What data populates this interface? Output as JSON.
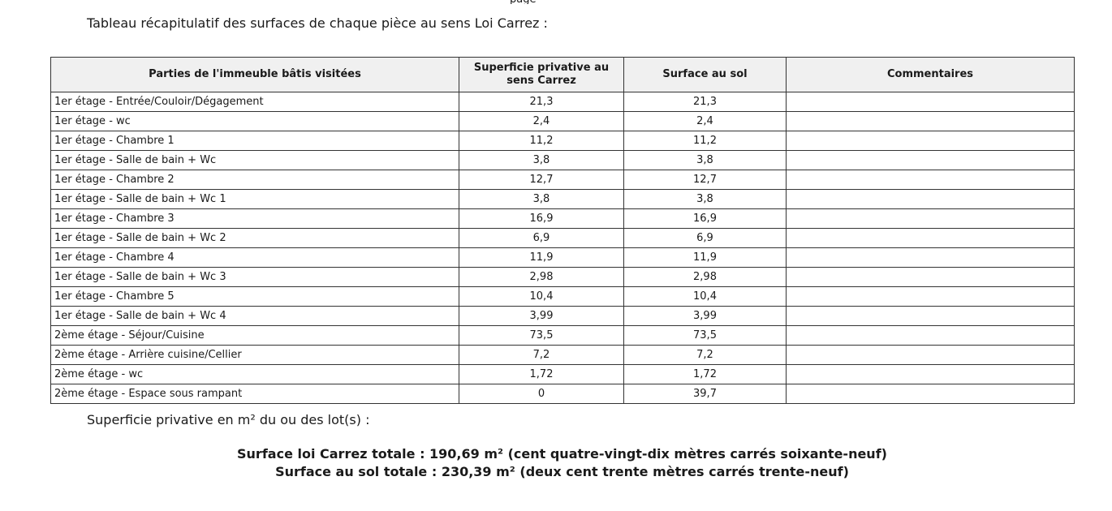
{
  "page": {
    "top_fragment": "page",
    "title": "Tableau récapitulatif des surfaces de chaque pièce au sens Loi Carrez :",
    "subtitle": "Superficie privative en m² du ou des lot(s) :",
    "totals": {
      "carrez": "Surface loi Carrez totale : 190,69 m² (cent quatre-vingt-dix mètres carrés soixante-neuf)",
      "sol": "Surface au sol totale : 230,39 m² (deux cent trente mètres carrés trente-neuf)"
    }
  },
  "table": {
    "headers": [
      "Parties de l'immeuble bâtis visitées",
      "Superficie privative au sens Carrez",
      "Surface au sol",
      "Commentaires"
    ],
    "rows": [
      {
        "partie": "1er étage - Entrée/Couloir/Dégagement",
        "carrez": "21,3",
        "sol": "21,3",
        "commentaire": ""
      },
      {
        "partie": "1er étage - wc",
        "carrez": "2,4",
        "sol": "2,4",
        "commentaire": ""
      },
      {
        "partie": "1er étage - Chambre 1",
        "carrez": "11,2",
        "sol": "11,2",
        "commentaire": ""
      },
      {
        "partie": "1er étage - Salle de bain + Wc",
        "carrez": "3,8",
        "sol": "3,8",
        "commentaire": ""
      },
      {
        "partie": "1er étage - Chambre 2",
        "carrez": "12,7",
        "sol": "12,7",
        "commentaire": ""
      },
      {
        "partie": "1er étage - Salle de bain + Wc 1",
        "carrez": "3,8",
        "sol": "3,8",
        "commentaire": ""
      },
      {
        "partie": "1er étage - Chambre 3",
        "carrez": "16,9",
        "sol": "16,9",
        "commentaire": ""
      },
      {
        "partie": "1er étage - Salle de bain + Wc 2",
        "carrez": "6,9",
        "sol": "6,9",
        "commentaire": ""
      },
      {
        "partie": "1er étage - Chambre 4",
        "carrez": "11,9",
        "sol": "11,9",
        "commentaire": ""
      },
      {
        "partie": "1er étage - Salle de bain + Wc 3",
        "carrez": "2,98",
        "sol": "2,98",
        "commentaire": ""
      },
      {
        "partie": "1er étage - Chambre 5",
        "carrez": "10,4",
        "sol": "10,4",
        "commentaire": ""
      },
      {
        "partie": "1er étage - Salle de bain + Wc 4",
        "carrez": "3,99",
        "sol": "3,99",
        "commentaire": ""
      },
      {
        "partie": "2ème étage - Séjour/Cuisine",
        "carrez": "73,5",
        "sol": "73,5",
        "commentaire": ""
      },
      {
        "partie": "2ème étage - Arrière cuisine/Cellier",
        "carrez": "7,2",
        "sol": "7,2",
        "commentaire": ""
      },
      {
        "partie": "2ème étage - wc",
        "carrez": "1,72",
        "sol": "1,72",
        "commentaire": ""
      },
      {
        "partie": "2ème étage - Espace sous rampant",
        "carrez": "0",
        "sol": "39,7",
        "commentaire": ""
      }
    ]
  },
  "colors": {
    "header_bg": "#f0f0f0",
    "border": "#333333",
    "text": "#1a1a1a",
    "background": "#ffffff"
  }
}
